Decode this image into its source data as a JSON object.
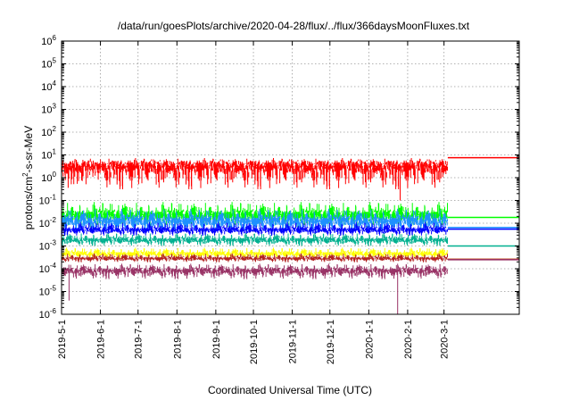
{
  "chart_data": {
    "type": "line",
    "title": "/data/run/goesPlots/archive/2020-04-28/flux/../flux/366daysMoonFluxes.txt",
    "xlabel": "Coordinated Universal Time (UTC)",
    "ylabel": "protons/cm2-s-sr-MeV",
    "ylabel_parts": {
      "a": "protons/cm",
      "sup": "2",
      "b": "-s-sr-MeV"
    },
    "x_scale": "time",
    "xlim": [
      "2019-05-01",
      "2020-04-30"
    ],
    "x_ticks": [
      "2019-5-1",
      "2019-6-1",
      "2019-7-1",
      "2019-8-1",
      "2019-9-1",
      "2019-10-1",
      "2019-11-1",
      "2019-12-1",
      "2020-1-1",
      "2020-2-1",
      "2020-3-1"
    ],
    "y_scale": "log",
    "ylim": [
      1e-06,
      1000000
    ],
    "y_ticks": [
      {
        "base": "10",
        "exp": "-6",
        "value": 1e-06
      },
      {
        "base": "10",
        "exp": "-5",
        "value": 1e-05
      },
      {
        "base": "10",
        "exp": "-4",
        "value": 0.0001
      },
      {
        "base": "10",
        "exp": "-3",
        "value": 0.001
      },
      {
        "base": "10",
        "exp": "-2",
        "value": 0.01
      },
      {
        "base": "10",
        "exp": "-1",
        "value": 0.1
      },
      {
        "base": "10",
        "exp": "0",
        "value": 1
      },
      {
        "base": "10",
        "exp": "1",
        "value": 10
      },
      {
        "base": "10",
        "exp": "2",
        "value": 100
      },
      {
        "base": "10",
        "exp": "3",
        "value": 1000
      },
      {
        "base": "10",
        "exp": "4",
        "value": 10000
      },
      {
        "base": "10",
        "exp": "5",
        "value": 100000
      },
      {
        "base": "10",
        "exp": "6",
        "value": 1000000
      }
    ],
    "grid": true,
    "data_end": "2020-03-04",
    "series": [
      {
        "color": "#ff0000",
        "typical": 3,
        "noise_lo": 0.2,
        "noise_hi": 8,
        "final": 7.5,
        "dips": [
          {
            "x": "2020-01-26",
            "y": 0.1
          }
        ]
      },
      {
        "color": "#00ff00",
        "typical": 0.022,
        "noise_lo": 0.005,
        "noise_hi": 0.1,
        "final": 0.018
      },
      {
        "color": "#1e90ff",
        "typical": 0.012,
        "noise_lo": 0.003,
        "noise_hi": 0.05,
        "final": 0.0065
      },
      {
        "color": "#0000ff",
        "typical": 0.005,
        "noise_lo": 0.0025,
        "noise_hi": 0.012,
        "final": 0.0055
      },
      {
        "color": "#00b090",
        "typical": 0.0018,
        "noise_lo": 0.0009,
        "noise_hi": 0.004,
        "final": 0.001
      },
      {
        "color": "#ffff00",
        "typical": 0.00045,
        "noise_lo": 0.00025,
        "noise_hi": 0.0009,
        "final": 0.00026
      },
      {
        "color": "#b22222",
        "typical": 0.00028,
        "noise_lo": 0.00018,
        "noise_hi": 0.0005,
        "final": 0.00026
      },
      {
        "color": "#993366",
        "typical": 8e-05,
        "noise_lo": 3e-05,
        "noise_hi": 0.00018,
        "final": 0.00025,
        "dips": [
          {
            "x": "2019-05-07",
            "y": 4e-06
          },
          {
            "x": "2020-01-24",
            "y": 1e-06
          }
        ]
      }
    ]
  }
}
